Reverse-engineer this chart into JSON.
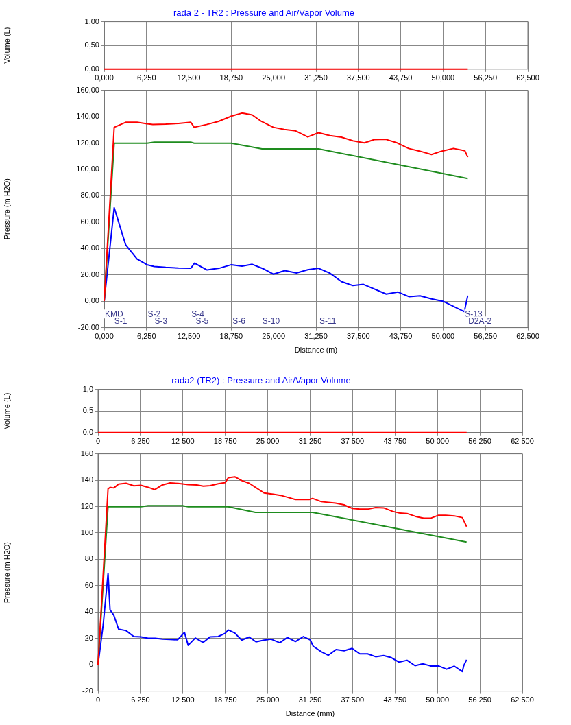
{
  "chart_data": [
    {
      "type": "line",
      "title": "rada 2 - TR2 : Pressure and Air/Vapor Volume",
      "ylabel": "Volume (L)",
      "grid": true,
      "xlim": [
        0,
        62.5
      ],
      "xticks": [
        {
          "value": 0,
          "label": "0,000"
        },
        {
          "value": 6.25,
          "label": "6,250"
        },
        {
          "value": 12.5,
          "label": "12,500"
        },
        {
          "value": 18.75,
          "label": "18,750"
        },
        {
          "value": 25,
          "label": "25,000"
        },
        {
          "value": 31.25,
          "label": "31,250"
        },
        {
          "value": 37.5,
          "label": "37,500"
        },
        {
          "value": 43.75,
          "label": "43,750"
        },
        {
          "value": 50,
          "label": "50,000"
        },
        {
          "value": 56.25,
          "label": "56,250"
        },
        {
          "value": 62.5,
          "label": "62,500"
        }
      ],
      "ylim": [
        0,
        1
      ],
      "yticks": [
        {
          "value": 0,
          "label": "0,00"
        },
        {
          "value": 0.5,
          "label": "0,50"
        },
        {
          "value": 1,
          "label": "1,00"
        }
      ],
      "series": [
        {
          "color": "#ff0000",
          "x": [
            0,
            53.64
          ],
          "values": [
            0,
            0
          ]
        }
      ]
    },
    {
      "type": "line",
      "xlabel": "Distance (m)",
      "ylabel": "Pressure (m H2O)",
      "grid": true,
      "xlim": [
        0,
        62.5
      ],
      "xticks": [
        {
          "value": 0,
          "label": "0,000"
        },
        {
          "value": 6.25,
          "label": "6,250"
        },
        {
          "value": 12.5,
          "label": "12,500"
        },
        {
          "value": 18.75,
          "label": "18,750"
        },
        {
          "value": 25,
          "label": "25,000"
        },
        {
          "value": 31.25,
          "label": "31,250"
        },
        {
          "value": 37.5,
          "label": "37,500"
        },
        {
          "value": 43.75,
          "label": "43,750"
        },
        {
          "value": 50,
          "label": "50,000"
        },
        {
          "value": 56.25,
          "label": "56,250"
        },
        {
          "value": 62.5,
          "label": "62,500"
        }
      ],
      "ylim": [
        -20,
        160
      ],
      "yticks": [
        {
          "value": -20,
          "label": "-20,00"
        },
        {
          "value": 0,
          "label": "0,00"
        },
        {
          "value": 20,
          "label": "20,00"
        },
        {
          "value": 40,
          "label": "40,00"
        },
        {
          "value": 60,
          "label": "60,00"
        },
        {
          "value": 80,
          "label": "80,00"
        },
        {
          "value": 100,
          "label": "100,00"
        },
        {
          "value": 120,
          "label": "120,00"
        },
        {
          "value": 140,
          "label": "140,00"
        },
        {
          "value": 160,
          "label": "160,00"
        }
      ],
      "series": [
        {
          "color": "#ff0000",
          "x": [
            0,
            1.476,
            3.163,
            4.85,
            6.325,
            7.17,
            9.07,
            10.96,
            12.78,
            13.28,
            15.18,
            16.87,
            18.77,
            20.33,
            21.84,
            23.19,
            24.96,
            26.57,
            28.25,
            30.03,
            31.63,
            33.31,
            35,
            36.69,
            38.38,
            39.85,
            41.54,
            43.22,
            44.91,
            46.6,
            48.29,
            49.76,
            51.53,
            53.22,
            53.64
          ],
          "values": [
            0,
            131.9,
            135.7,
            135.7,
            134.6,
            134.1,
            134.3,
            134.8,
            135.7,
            131.9,
            134.1,
            136.4,
            140.4,
            142.7,
            141.3,
            136.4,
            131.9,
            130.3,
            129.2,
            124.6,
            127.8,
            125.6,
            124.4,
            121.7,
            120.1,
            122.6,
            122.8,
            120.1,
            115.9,
            113.8,
            111.3,
            113.8,
            115.9,
            114.1,
            109.3
          ]
        },
        {
          "color": "#1e8c1e",
          "x": [
            0,
            1.476,
            6.325,
            7.38,
            12.78,
            13.28,
            18.77,
            23.28,
            31.63,
            53.64
          ],
          "values": [
            0,
            119.9,
            119.9,
            120.6,
            120.6,
            119.9,
            119.9,
            115.6,
            115.6,
            93.1
          ]
        },
        {
          "color": "#0000ff",
          "x": [
            0,
            1.476,
            3.163,
            4.85,
            6.325,
            7.38,
            9.07,
            10.96,
            12.78,
            13.33,
            15.18,
            16.95,
            18.77,
            20.33,
            21.84,
            23.4,
            24.96,
            26.65,
            28.38,
            30.03,
            31.63,
            33.31,
            35,
            36.69,
            38.25,
            41.62,
            43.31,
            45,
            46.6,
            48.29,
            49.97,
            53.13,
            53.64
          ],
          "values": [
            0,
            71,
            42.8,
            32,
            27.7,
            26.4,
            25.7,
            25.2,
            25,
            28.9,
            23.7,
            25,
            27.7,
            26.6,
            28,
            24.8,
            20.5,
            23.2,
            21.4,
            23.9,
            25,
            21.2,
            14.9,
            11.9,
            12.8,
            5.4,
            7,
            3.4,
            4.1,
            1.8,
            0,
            -7.9,
            4.3
          ]
        }
      ],
      "annotations": [
        "KMD",
        "S-1",
        "S-2",
        "S-3",
        "S-4",
        "S-5",
        "S-6",
        "S-10",
        "S-11",
        "S-13",
        "D2A-2"
      ]
    },
    {
      "type": "line",
      "title": "rada2 (TR2) : Pressure and Air/Vapor Volume",
      "ylabel": "Volume (L)",
      "grid": true,
      "xlim": [
        0,
        62500
      ],
      "xticks": [
        0,
        {
          "value": 6250,
          "label": "6 250"
        },
        {
          "value": 12500,
          "label": "12 500"
        },
        {
          "value": 18750,
          "label": "18 750"
        },
        {
          "value": 25000,
          "label": "25 000"
        },
        {
          "value": 31250,
          "label": "31 250"
        },
        {
          "value": 37500,
          "label": "37 500"
        },
        {
          "value": 43750,
          "label": "43 750"
        },
        {
          "value": 50000,
          "label": "50 000"
        },
        {
          "value": 56250,
          "label": "56 250"
        },
        {
          "value": 62500,
          "label": "62 500"
        }
      ],
      "ylim": [
        0,
        1
      ],
      "yticks": [
        {
          "value": 0,
          "label": "0,0"
        },
        {
          "value": 0.5,
          "label": "0,5"
        },
        {
          "value": 1,
          "label": "1,0"
        }
      ],
      "series": [
        {
          "color": "#ff0000",
          "x": [
            0,
            54290
          ],
          "values": [
            0,
            0
          ]
        }
      ]
    },
    {
      "type": "line",
      "xlabel": "Distance (mm)",
      "ylabel": "Pressure (m H2O)",
      "grid": true,
      "xlim": [
        0,
        62500
      ],
      "xticks": [
        0,
        {
          "value": 6250,
          "label": "6 250"
        },
        {
          "value": 12500,
          "label": "12 500"
        },
        {
          "value": 18750,
          "label": "18 750"
        },
        {
          "value": 25000,
          "label": "25 000"
        },
        {
          "value": 31250,
          "label": "31 250"
        },
        {
          "value": 37500,
          "label": "37 500"
        },
        {
          "value": 43750,
          "label": "43 750"
        },
        {
          "value": 50000,
          "label": "50 000"
        },
        {
          "value": 56250,
          "label": "56 250"
        },
        {
          "value": 62500,
          "label": "62 500"
        }
      ],
      "ylim": [
        -20,
        160
      ],
      "yticks": [
        -20,
        0,
        20,
        40,
        60,
        80,
        100,
        120,
        140,
        160
      ],
      "series": [
        {
          "color": "#ff0000",
          "x": [
            0,
            1475,
            1770,
            2320,
            3030,
            4130,
            5270,
            6320,
            7380,
            8350,
            9480,
            10620,
            11800,
            13280,
            14540,
            15510,
            16520,
            17700,
            18760,
            19180,
            20150,
            21160,
            22260,
            24450,
            25800,
            26890,
            27900,
            29080,
            31110,
            31610,
            32880,
            34980,
            36250,
            37430,
            38570,
            39830,
            40890,
            42070,
            43420,
            44470,
            45520,
            46790,
            47970,
            48980,
            50160,
            51210,
            52480,
            53660,
            54290
          ],
          "values": [
            0,
            133.4,
            134.6,
            134.1,
            137,
            137.7,
            135.7,
            136.1,
            134.6,
            132.8,
            136.4,
            137.9,
            137.5,
            136.6,
            136.4,
            135.5,
            135.9,
            137.3,
            138.2,
            141.8,
            142.5,
            139.7,
            137.7,
            130.3,
            129.4,
            128.5,
            127.1,
            125.3,
            125.3,
            126.2,
            123.7,
            122.6,
            121.3,
            118.6,
            118.1,
            118.1,
            119.2,
            119,
            116.3,
            115,
            114.7,
            112.5,
            111.1,
            111.1,
            113.4,
            113.4,
            112.9,
            111.6,
            104.8
          ]
        },
        {
          "color": "#1e8c1e",
          "x": [
            0,
            1475,
            6320,
            7380,
            12430,
            13280,
            19180,
            23180,
            31610,
            54290
          ],
          "values": [
            0,
            119.9,
            119.9,
            120.6,
            120.6,
            119.9,
            119.9,
            115.6,
            115.6,
            93.1
          ]
        },
        {
          "color": "#0000ff",
          "x": [
            0,
            760,
            1475,
            1770,
            2320,
            3030,
            4130,
            5270,
            6320,
            7380,
            8430,
            9480,
            10620,
            11720,
            12730,
            13280,
            14330,
            15470,
            16520,
            17700,
            18760,
            19180,
            20150,
            21160,
            22260,
            23270,
            24450,
            25500,
            26770,
            27900,
            29080,
            30260,
            31280,
            31700,
            32880,
            33930,
            35070,
            36250,
            37430,
            38570,
            39710,
            40890,
            42070,
            43210,
            44340,
            45520,
            46700,
            47840,
            48980,
            50160,
            51340,
            52480,
            53660,
            53870,
            54290
          ],
          "values": [
            0,
            30.4,
            69.2,
            41.7,
            37.6,
            27,
            25.9,
            21.4,
            21.2,
            20.1,
            20.1,
            19.4,
            19.2,
            18.9,
            24.6,
            14.7,
            20.3,
            16.9,
            21.2,
            21.4,
            23.9,
            26.4,
            24.1,
            18.7,
            21,
            17.4,
            18.7,
            19.4,
            16.7,
            20.7,
            17.6,
            21.4,
            18.7,
            14,
            9.9,
            7.2,
            11.5,
            10.6,
            12.4,
            8.3,
            8.3,
            6.1,
            7,
            5.4,
            2,
            3.4,
            -0.7,
            0.7,
            -0.9,
            -0.9,
            -3.4,
            -1.1,
            -5.2,
            -0.7,
            3.8
          ]
        }
      ]
    }
  ]
}
